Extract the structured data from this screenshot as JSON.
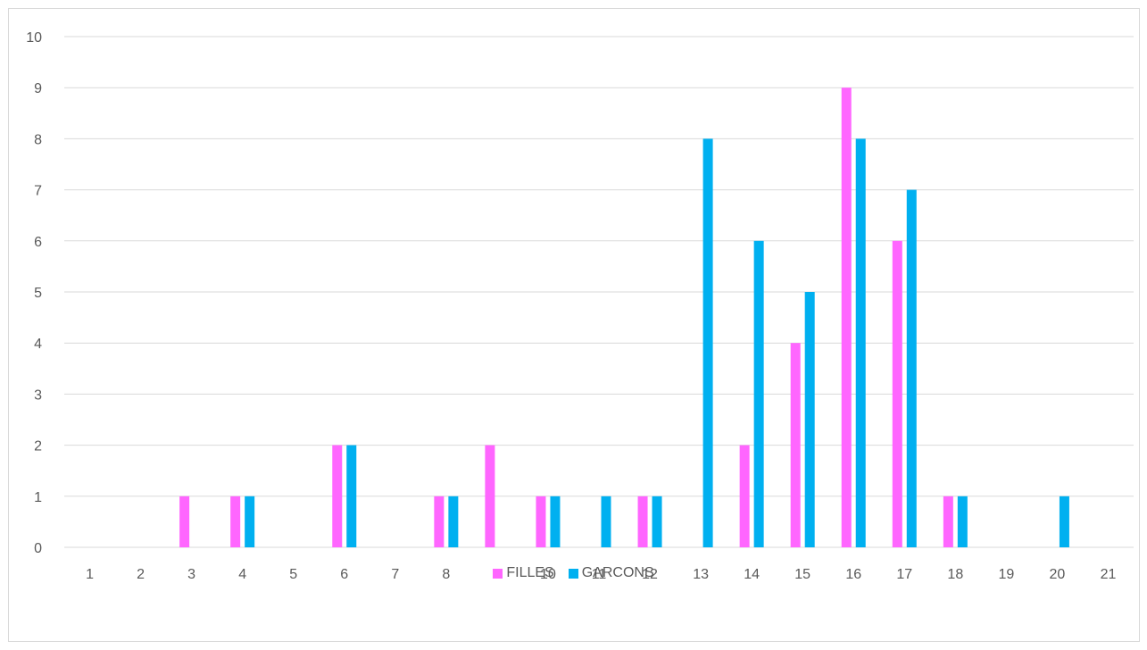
{
  "chart_data": {
    "type": "bar",
    "title": "",
    "xlabel": "",
    "ylabel": "",
    "categories": [
      "1",
      "2",
      "3",
      "4",
      "5",
      "6",
      "7",
      "8",
      "9",
      "10",
      "11",
      "12",
      "13",
      "14",
      "15",
      "16",
      "17",
      "18",
      "19",
      "20",
      "21"
    ],
    "series": [
      {
        "name": "FILLES",
        "color": "#ff66ff",
        "values": [
          0,
          0,
          1,
          1,
          0,
          2,
          0,
          1,
          2,
          1,
          0,
          1,
          0,
          2,
          4,
          9,
          6,
          1,
          0,
          0,
          0
        ]
      },
      {
        "name": "GARCONS",
        "color": "#00b0f0",
        "values": [
          0,
          0,
          0,
          1,
          0,
          2,
          0,
          1,
          0,
          1,
          1,
          1,
          8,
          6,
          5,
          8,
          7,
          1,
          0,
          1,
          0
        ]
      }
    ],
    "ylim": [
      0,
      10
    ],
    "yticks": [
      "0",
      "1",
      "2",
      "3",
      "4",
      "5",
      "6",
      "7",
      "8",
      "9",
      "10"
    ],
    "grid": true,
    "legend": "bottom"
  }
}
